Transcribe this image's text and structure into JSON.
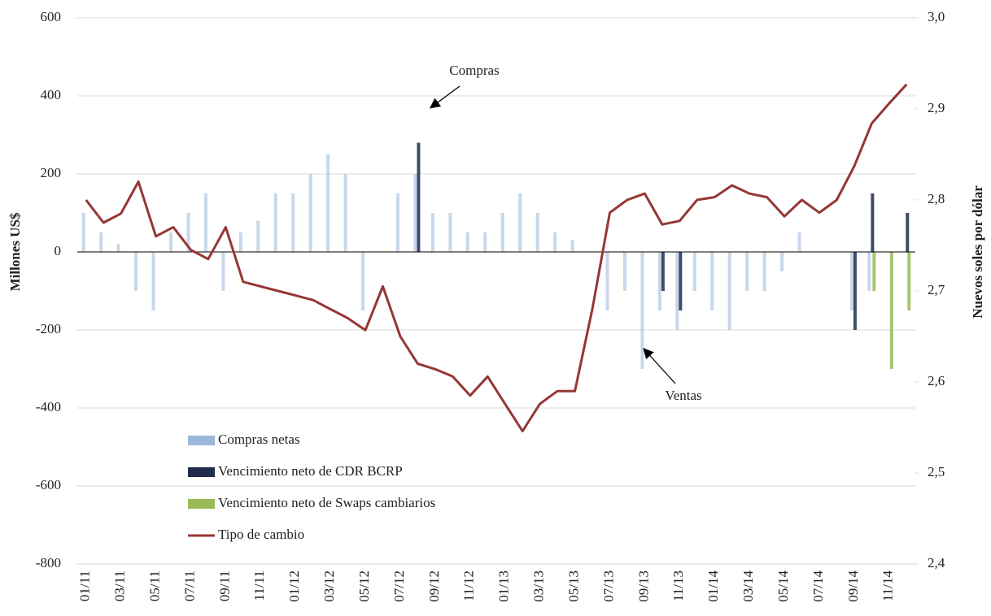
{
  "chart_data": {
    "type": "bar-line",
    "y_label": "Millones  US$",
    "y2_label": "Nuevos soles por dólar",
    "annotations": [
      "Compras",
      "Ventas"
    ],
    "categories": [
      "01/11",
      null,
      "03/11",
      null,
      "05/11",
      null,
      "07/11",
      null,
      "09/11",
      null,
      "11/11",
      null,
      "01/12",
      null,
      "03/12",
      null,
      "05/12",
      null,
      "07/12",
      null,
      "09/12",
      null,
      "11/12",
      null,
      "01/13",
      null,
      "03/13",
      null,
      "05/13",
      null,
      "07/13",
      null,
      "09/13",
      null,
      "11/13",
      null,
      "01/14",
      null,
      "03/14",
      null,
      "05/14",
      null,
      "07/14",
      null,
      "09/14",
      null,
      "11/14",
      null
    ],
    "ylim": [
      -800,
      600
    ],
    "yticks": [
      -800,
      -600,
      -400,
      -200,
      0,
      200,
      400,
      600
    ],
    "y2lim": [
      2.4,
      3.0
    ],
    "y2ticks": [
      {
        "value": 2.4,
        "label": "2,4"
      },
      {
        "value": 2.5,
        "label": "2,5"
      },
      {
        "value": 2.6,
        "label": "2,6"
      },
      {
        "value": 2.7,
        "label": "2,7"
      },
      {
        "value": 2.8,
        "label": "2,8"
      },
      {
        "value": 2.9,
        "label": "2,9"
      },
      {
        "value": 3.0,
        "label": "3,0"
      }
    ],
    "grid": true,
    "series": [
      {
        "name": "Compras netas",
        "color": "#9bb7d9",
        "values": [
          100,
          50,
          20,
          -100,
          -150,
          50,
          100,
          150,
          -100,
          50,
          80,
          150,
          150,
          200,
          250,
          200,
          -150,
          0,
          150,
          200,
          100,
          100,
          50,
          50,
          100,
          150,
          100,
          50,
          30,
          0,
          -150,
          -100,
          -300,
          -150,
          -200,
          -100,
          -150,
          -200,
          -100,
          -100,
          -50,
          50,
          0,
          0,
          -150,
          -100,
          0,
          0
        ]
      },
      {
        "name": "Vencimiento neto de CDR BCRP",
        "color": "#1f2d4d",
        "values": [
          0,
          0,
          0,
          0,
          0,
          0,
          0,
          0,
          0,
          0,
          0,
          0,
          0,
          0,
          0,
          0,
          0,
          0,
          0,
          280,
          0,
          0,
          0,
          0,
          0,
          0,
          0,
          0,
          0,
          0,
          0,
          0,
          0,
          -100,
          -150,
          0,
          0,
          0,
          0,
          0,
          0,
          0,
          0,
          0,
          -200,
          150,
          0,
          100
        ]
      },
      {
        "name": "Vencimiento neto de Swaps cambiarios",
        "color": "#9bbb59",
        "values": [
          0,
          0,
          0,
          0,
          0,
          0,
          0,
          0,
          0,
          0,
          0,
          0,
          0,
          0,
          0,
          0,
          0,
          0,
          0,
          0,
          0,
          0,
          0,
          0,
          0,
          0,
          0,
          0,
          0,
          0,
          0,
          0,
          0,
          0,
          0,
          0,
          0,
          0,
          0,
          0,
          0,
          0,
          0,
          0,
          0,
          -100,
          -300,
          -150
        ]
      },
      {
        "name": "Tipo de cambio",
        "color": "#953735",
        "axis": "y2",
        "values": [
          2.8,
          2.775,
          2.785,
          2.82,
          2.76,
          2.77,
          2.745,
          2.735,
          2.77,
          2.71,
          2.705,
          2.7,
          2.695,
          2.69,
          2.68,
          2.67,
          2.657,
          2.705,
          2.65,
          2.62,
          2.614,
          2.606,
          2.585,
          2.606,
          2.576,
          2.546,
          2.576,
          2.59,
          2.59,
          2.68,
          2.786,
          2.8,
          2.807,
          2.773,
          2.777,
          2.8,
          2.803,
          2.816,
          2.807,
          2.803,
          2.782,
          2.8,
          2.786,
          2.8,
          2.837,
          2.884,
          2.906,
          2.927
        ]
      }
    ]
  }
}
